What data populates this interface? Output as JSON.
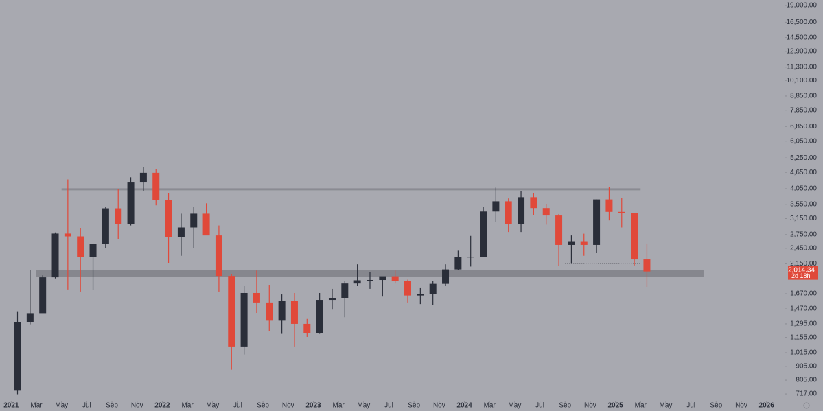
{
  "chart_data": {
    "type": "candlestick",
    "log_scale": true,
    "up_color": "#2a2e39",
    "down_color": "#e0493a",
    "x": [
      "2021-01",
      "2021-02",
      "2021-03",
      "2021-04",
      "2021-05",
      "2021-06",
      "2021-07",
      "2021-08",
      "2021-09",
      "2021-10",
      "2021-11",
      "2021-12",
      "2022-01",
      "2022-02",
      "2022-03",
      "2022-04",
      "2022-05",
      "2022-06",
      "2022-07",
      "2022-08",
      "2022-09",
      "2022-10",
      "2022-11",
      "2022-12",
      "2023-01",
      "2023-02",
      "2023-03",
      "2023-04",
      "2023-05",
      "2023-06",
      "2023-07",
      "2023-08",
      "2023-09",
      "2023-10",
      "2023-11",
      "2023-12",
      "2024-01",
      "2024-02",
      "2024-03",
      "2024-04",
      "2024-05",
      "2024-06",
      "2024-07",
      "2024-08",
      "2024-09",
      "2024-10",
      "2024-11",
      "2024-12",
      "2025-01",
      "2025-02",
      "2025-03"
    ],
    "open": [
      737,
      1314,
      1417,
      1918,
      2773,
      2708,
      2275,
      2536,
      3433,
      3000,
      4290,
      4630,
      3680,
      2690,
      2920,
      3280,
      2730,
      1940,
      1070,
      1680,
      1550,
      1330,
      1570,
      1295,
      1196,
      1585,
      1605,
      1820,
      1870,
      1875,
      1935,
      1855,
      1645,
      1670,
      1815,
      2050,
      2280,
      2280,
      3340,
      3640,
      3010,
      3770,
      3440,
      3230,
      2520,
      2600,
      2520,
      3700,
      3330,
      3300,
      2230
    ],
    "high": [
      1440,
      2040,
      1950,
      2800,
      4380,
      2900,
      2550,
      3470,
      4030,
      4460,
      4870,
      4780,
      3900,
      3280,
      3480,
      3580,
      2970,
      1970,
      1780,
      2030,
      1790,
      1660,
      1680,
      1350,
      1680,
      1740,
      1860,
      2140,
      2000,
      1930,
      2030,
      1880,
      1750,
      1860,
      2140,
      2400,
      2720,
      3480,
      4090,
      3730,
      3980,
      3890,
      3560,
      3270,
      2730,
      2770,
      3700,
      4110,
      3740,
      3290,
      2550
    ],
    "low": [
      715,
      1290,
      1450,
      1900,
      1730,
      1700,
      1720,
      2450,
      2650,
      2970,
      3960,
      3520,
      2160,
      2300,
      2450,
      2770,
      1700,
      880,
      1000,
      1420,
      1220,
      1190,
      1070,
      1160,
      1190,
      1460,
      1370,
      1780,
      1740,
      1630,
      1820,
      1550,
      1530,
      1520,
      1780,
      2040,
      2100,
      2270,
      3050,
      2810,
      2810,
      3240,
      2990,
      2110,
      2150,
      2300,
      2360,
      3100,
      2920,
      2120,
      1760
    ],
    "close": [
      1314,
      1417,
      1918,
      2773,
      2708,
      2275,
      2536,
      3433,
      3000,
      4290,
      4630,
      3680,
      2690,
      2920,
      3280,
      2730,
      1940,
      1070,
      1680,
      1550,
      1330,
      1570,
      1295,
      1196,
      1585,
      1605,
      1820,
      1870,
      1875,
      1935,
      1855,
      1645,
      1670,
      1815,
      2050,
      2280,
      2280,
      3340,
      3640,
      3010,
      3770,
      3440,
      3230,
      2520,
      2600,
      2520,
      3700,
      3330,
      3300,
      2230,
      2014.34
    ],
    "xlim": [
      "2020-12",
      "2026-02"
    ],
    "xticks": [
      {
        "value": "2021-01",
        "label": "2021"
      },
      {
        "value": "2021-03",
        "label": "Mar"
      },
      {
        "value": "2021-05",
        "label": "May"
      },
      {
        "value": "2021-07",
        "label": "Jul"
      },
      {
        "value": "2021-09",
        "label": "Sep"
      },
      {
        "value": "2021-11",
        "label": "Nov"
      },
      {
        "value": "2022-01",
        "label": "2022"
      },
      {
        "value": "2022-03",
        "label": "Mar"
      },
      {
        "value": "2022-05",
        "label": "May"
      },
      {
        "value": "2022-07",
        "label": "Jul"
      },
      {
        "value": "2022-09",
        "label": "Sep"
      },
      {
        "value": "2022-11",
        "label": "Nov"
      },
      {
        "value": "2023-01",
        "label": "2023"
      },
      {
        "value": "2023-03",
        "label": "Mar"
      },
      {
        "value": "2023-05",
        "label": "May"
      },
      {
        "value": "2023-07",
        "label": "Jul"
      },
      {
        "value": "2023-09",
        "label": "Sep"
      },
      {
        "value": "2023-11",
        "label": "Nov"
      },
      {
        "value": "2024-01",
        "label": "2024"
      },
      {
        "value": "2024-03",
        "label": "Mar"
      },
      {
        "value": "2024-05",
        "label": "May"
      },
      {
        "value": "2024-07",
        "label": "Jul"
      },
      {
        "value": "2024-09",
        "label": "Sep"
      },
      {
        "value": "2024-11",
        "label": "Nov"
      },
      {
        "value": "2025-01",
        "label": "2025"
      },
      {
        "value": "2025-03",
        "label": "Mar"
      },
      {
        "value": "2025-05",
        "label": "May"
      },
      {
        "value": "2025-07",
        "label": "Jul"
      },
      {
        "value": "2025-09",
        "label": "Sep"
      },
      {
        "value": "2025-11",
        "label": "Nov"
      },
      {
        "value": "2026-01",
        "label": "2026"
      }
    ],
    "ylim": [
      673,
      19900
    ],
    "yticks": [
      {
        "value": 717,
        "label": "717.00"
      },
      {
        "value": 805,
        "label": "805.00"
      },
      {
        "value": 905,
        "label": "905.00"
      },
      {
        "value": 1015,
        "label": "1,015.00"
      },
      {
        "value": 1155,
        "label": "1,155.00"
      },
      {
        "value": 1295,
        "label": "1,295.00"
      },
      {
        "value": 1470,
        "label": "1,470.00"
      },
      {
        "value": 1670,
        "label": "1,670.00"
      },
      {
        "value": 2150,
        "label": "2,150.00"
      },
      {
        "value": 2450,
        "label": "2,450.00"
      },
      {
        "value": 2750,
        "label": "2,750.00"
      },
      {
        "value": 3150,
        "label": "3,150.00"
      },
      {
        "value": 3550,
        "label": "3,550.00"
      },
      {
        "value": 4050,
        "label": "4,050.00"
      },
      {
        "value": 4650,
        "label": "4,650.00"
      },
      {
        "value": 5250,
        "label": "5,250.00"
      },
      {
        "value": 6050,
        "label": "6,050.00"
      },
      {
        "value": 6850,
        "label": "6,850.00"
      },
      {
        "value": 7850,
        "label": "7,850.00"
      },
      {
        "value": 8850,
        "label": "8,850.00"
      },
      {
        "value": 10100,
        "label": "10,100.00"
      },
      {
        "value": 11300,
        "label": "11,300.00"
      },
      {
        "value": 12900,
        "label": "12,900.00"
      },
      {
        "value": 14500,
        "label": "14,500.00"
      },
      {
        "value": 16500,
        "label": "16,500.00"
      },
      {
        "value": 19000,
        "label": "19,000.00"
      }
    ],
    "levels": [
      {
        "price": 4030,
        "from": "2021-05",
        "to": "2025-03",
        "style": "solid"
      },
      {
        "price": 1981,
        "from": "2021-03",
        "to": "2025-08",
        "style": "band"
      },
      {
        "price": 2150,
        "from": "2024-09",
        "to": "2025-03",
        "style": "dotted"
      }
    ],
    "last_price": {
      "value": 2014.34,
      "label": "2,014.34"
    },
    "countdown": "2d 18h"
  }
}
